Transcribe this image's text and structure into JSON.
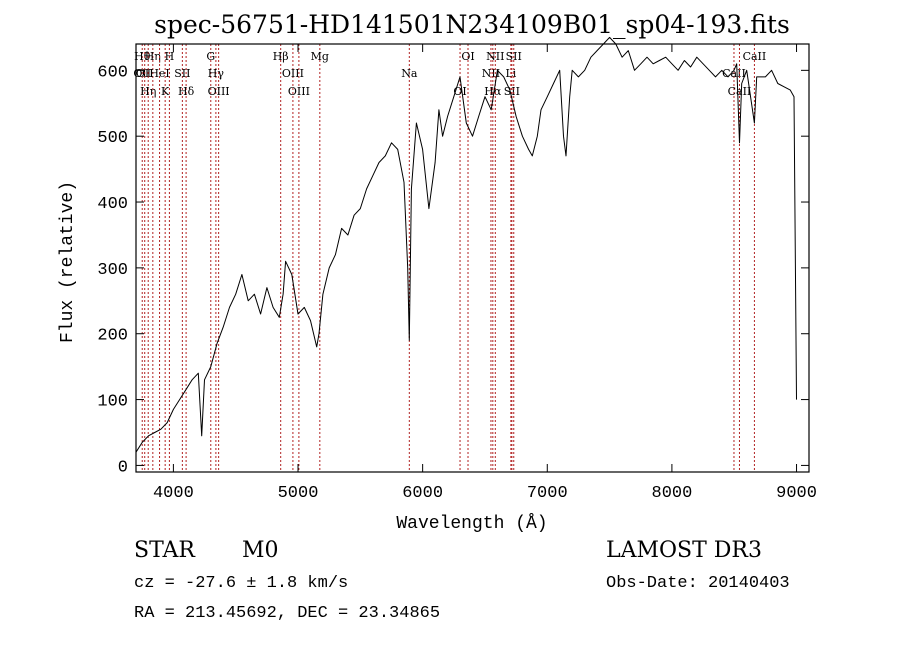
{
  "chart_data": {
    "type": "line",
    "title": "spec-56751-HD141501N234109B01_sp04-193.fits",
    "xlabel": "Wavelength (Å)",
    "ylabel": "Flux (relative)",
    "xlim": [
      3700,
      9100
    ],
    "ylim": [
      -10,
      640
    ],
    "x_ticks": [
      4000,
      5000,
      6000,
      7000,
      8000,
      9000
    ],
    "y_ticks": [
      0,
      100,
      200,
      300,
      400,
      500,
      600
    ],
    "grid": false,
    "series": [
      {
        "name": "spectrum",
        "x": [
          3700,
          3750,
          3800,
          3850,
          3900,
          3950,
          4000,
          4050,
          4100,
          4150,
          4200,
          4227,
          4250,
          4300,
          4350,
          4400,
          4450,
          4500,
          4550,
          4600,
          4650,
          4700,
          4750,
          4800,
          4850,
          4880,
          4900,
          4950,
          5000,
          5050,
          5100,
          5150,
          5168,
          5200,
          5250,
          5300,
          5350,
          5400,
          5450,
          5500,
          5550,
          5600,
          5650,
          5700,
          5750,
          5800,
          5850,
          5880,
          5893,
          5910,
          5950,
          6000,
          6050,
          6100,
          6130,
          6160,
          6200,
          6250,
          6300,
          6350,
          6400,
          6450,
          6500,
          6550,
          6600,
          6650,
          6700,
          6750,
          6800,
          6850,
          6880,
          6920,
          6950,
          7000,
          7050,
          7100,
          7130,
          7150,
          7180,
          7200,
          7250,
          7300,
          7350,
          7400,
          7450,
          7500,
          7550,
          7600,
          7650,
          7700,
          7750,
          7800,
          7850,
          7900,
          7950,
          8000,
          8050,
          8100,
          8150,
          8200,
          8250,
          8300,
          8350,
          8400,
          8450,
          8498,
          8520,
          8542,
          8560,
          8600,
          8662,
          8680,
          8700,
          8750,
          8800,
          8850,
          8900,
          8950,
          8980,
          9000
        ],
        "y": [
          20,
          35,
          45,
          50,
          55,
          65,
          85,
          100,
          115,
          130,
          140,
          45,
          130,
          150,
          185,
          210,
          240,
          260,
          290,
          250,
          260,
          230,
          270,
          240,
          225,
          260,
          310,
          290,
          230,
          240,
          220,
          180,
          200,
          260,
          300,
          320,
          360,
          350,
          380,
          390,
          420,
          440,
          460,
          470,
          490,
          480,
          430,
          300,
          190,
          420,
          520,
          480,
          390,
          460,
          540,
          500,
          530,
          560,
          590,
          520,
          500,
          530,
          560,
          540,
          600,
          590,
          570,
          530,
          500,
          480,
          470,
          500,
          540,
          560,
          580,
          600,
          500,
          470,
          560,
          600,
          590,
          600,
          620,
          630,
          640,
          650,
          640,
          620,
          630,
          600,
          610,
          620,
          610,
          615,
          620,
          610,
          600,
          615,
          605,
          620,
          610,
          600,
          590,
          600,
          590,
          600,
          610,
          490,
          580,
          600,
          520,
          590,
          590,
          590,
          600,
          580,
          575,
          570,
          560,
          100
        ]
      }
    ],
    "line_markers": [
      {
        "wavelength": 3750,
        "labels": [
          "Hθ",
          "OII"
        ]
      },
      {
        "wavelength": 3770,
        "labels": [
          "OII"
        ]
      },
      {
        "wavelength": 3798,
        "labels": [
          "Hη"
        ]
      },
      {
        "wavelength": 3835,
        "labels": [
          "Hη"
        ]
      },
      {
        "wavelength": 3889,
        "labels": [
          "HeI"
        ]
      },
      {
        "wavelength": 3934,
        "labels": [
          "K"
        ]
      },
      {
        "wavelength": 3968,
        "labels": [
          "H"
        ]
      },
      {
        "wavelength": 4072,
        "labels": [
          "SII"
        ]
      },
      {
        "wavelength": 4102,
        "labels": [
          "Hδ"
        ]
      },
      {
        "wavelength": 4300,
        "labels": [
          "G"
        ]
      },
      {
        "wavelength": 4341,
        "labels": [
          "Hγ"
        ]
      },
      {
        "wavelength": 4363,
        "labels": [
          "OIII"
        ]
      },
      {
        "wavelength": 4861,
        "labels": [
          "Hβ"
        ]
      },
      {
        "wavelength": 4959,
        "labels": [
          "OIII"
        ]
      },
      {
        "wavelength": 5007,
        "labels": [
          "OIII"
        ]
      },
      {
        "wavelength": 5175,
        "labels": [
          "Mg"
        ]
      },
      {
        "wavelength": 5893,
        "labels": [
          "Na"
        ]
      },
      {
        "wavelength": 6300,
        "labels": [
          "OI"
        ]
      },
      {
        "wavelength": 6364,
        "labels": [
          "OI"
        ]
      },
      {
        "wavelength": 6548,
        "labels": [
          "NII"
        ]
      },
      {
        "wavelength": 6563,
        "labels": [
          "Hα"
        ]
      },
      {
        "wavelength": 6583,
        "labels": [
          "NII"
        ]
      },
      {
        "wavelength": 6708,
        "labels": [
          "Li"
        ]
      },
      {
        "wavelength": 6716,
        "labels": [
          "SII"
        ]
      },
      {
        "wavelength": 6731,
        "labels": [
          "SII"
        ]
      },
      {
        "wavelength": 8498,
        "labels": [
          "CaII"
        ]
      },
      {
        "wavelength": 8542,
        "labels": [
          "CaII"
        ]
      },
      {
        "wavelength": 8662,
        "labels": [
          "CaII"
        ]
      }
    ]
  },
  "info": {
    "object_class": "STAR",
    "subclass": "M0",
    "survey": "LAMOST DR3",
    "redshift_text": "cz = -27.6 ± 1.8 km/s",
    "obs_date_text": "Obs-Date: 20140403",
    "coords_text": "RA = 213.45692, DEC =  23.34865"
  },
  "colors": {
    "spectrum": "#000000",
    "marker_line": "#b22222",
    "axis": "#000000"
  }
}
